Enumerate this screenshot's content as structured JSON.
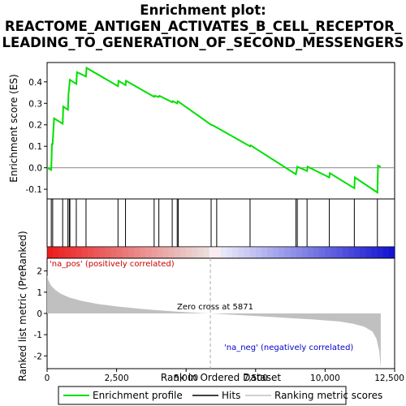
{
  "title_line1": "Enrichment plot:",
  "title_line2": "REACTOME_ANTIGEN_ACTIVATES_B_CELL_RECEPTOR_",
  "title_line3": "LEADING_TO_GENERATION_OF_SECOND_MESSENGERS",
  "colors": {
    "es_line": "#00e000",
    "hits": "#000000",
    "ranking_fill": "#c0c0c0",
    "pos_label": "#cc0000",
    "neg_label": "#0000cc",
    "zero_cross_line": "#aaaaaa",
    "zero_line": "#888888"
  },
  "chart_data": [
    {
      "type": "line",
      "panel": "enrichment-profile",
      "ylabel": "Enrichment score (ES)",
      "ylim": [
        -0.145,
        0.49
      ],
      "xlim": [
        0,
        12500
      ],
      "y_ticks": [
        "0.4",
        "0.3",
        "0.2",
        "0.1",
        "0.0",
        "-0.1"
      ],
      "y_tick_values": [
        0.4,
        0.3,
        0.2,
        0.1,
        0.0,
        -0.1
      ],
      "series": [
        {
          "x": [
            0,
            150,
            175,
            200,
            250,
            560,
            580,
            750,
            770,
            820,
            1050,
            1075,
            1400,
            1420,
            2550,
            2570,
            2820,
            2840,
            3850,
            3870,
            4020,
            4040,
            4500,
            4520,
            4680,
            4700,
            5900,
            6000,
            7300,
            7320,
            8950,
            9000,
            9350,
            9370,
            10150,
            10170,
            11050,
            11070,
            11880,
            11900,
            12000
          ],
          "y": [
            0.0,
            -0.01,
            0.11,
            0.11,
            0.23,
            0.205,
            0.285,
            0.27,
            0.345,
            0.41,
            0.39,
            0.445,
            0.425,
            0.465,
            0.38,
            0.405,
            0.385,
            0.405,
            0.33,
            0.335,
            0.33,
            0.335,
            0.305,
            0.31,
            0.3,
            0.31,
            0.2,
            0.195,
            0.1,
            0.105,
            -0.03,
            0.005,
            -0.015,
            0.005,
            -0.045,
            -0.025,
            -0.095,
            -0.045,
            -0.115,
            0.01,
            0.005
          ]
        }
      ]
    },
    {
      "type": "hits",
      "panel": "hit-barcode",
      "hit_positions": [
        150,
        200,
        560,
        750,
        800,
        820,
        1050,
        1400,
        2550,
        2820,
        3850,
        4020,
        4500,
        4680,
        4720,
        5900,
        6100,
        7300,
        8950,
        9000,
        9350,
        10150,
        11050,
        11880
      ]
    },
    {
      "type": "area",
      "panel": "ranked-list-metric",
      "ylabel": "Ranked list metric (PreRanked)",
      "xlabel": "Rank in Ordered Dataset",
      "ylim": [
        -2.6,
        2.6
      ],
      "xlim": [
        0,
        12500
      ],
      "y_ticks": [
        "2",
        "1",
        "0",
        "-1",
        "-2"
      ],
      "y_tick_values": [
        2,
        1,
        0,
        -1,
        -2
      ],
      "x_ticks": [
        "0",
        "2,500",
        "5,000",
        "7,500",
        "10,000",
        "12,500"
      ],
      "x_tick_values": [
        0,
        2500,
        5000,
        7500,
        10000,
        12500
      ],
      "x": [
        0,
        50,
        150,
        300,
        500,
        800,
        1200,
        1800,
        2500,
        3500,
        4500,
        5500,
        5871,
        6500,
        7500,
        8500,
        9500,
        10500,
        11000,
        11400,
        11700,
        11850,
        11950,
        12000
      ],
      "y": [
        1.8,
        1.55,
        1.3,
        1.1,
        0.92,
        0.75,
        0.6,
        0.45,
        0.33,
        0.2,
        0.1,
        0.02,
        0.0,
        -0.05,
        -0.12,
        -0.2,
        -0.28,
        -0.38,
        -0.48,
        -0.62,
        -0.85,
        -1.2,
        -1.8,
        -2.6
      ],
      "zero_cross": 5871,
      "annotations": {
        "pos_label": "'na_pos' (positively correlated)",
        "neg_label": "'na_neg' (negatively correlated)",
        "zero_cross_label": "Zero cross at 5871"
      }
    }
  ],
  "legend": {
    "items": [
      {
        "label": "Enrichment profile",
        "color": "#00e000"
      },
      {
        "label": "Hits",
        "color": "#000000"
      },
      {
        "label": "Ranking metric scores",
        "color": "#c0c0c0"
      }
    ]
  }
}
